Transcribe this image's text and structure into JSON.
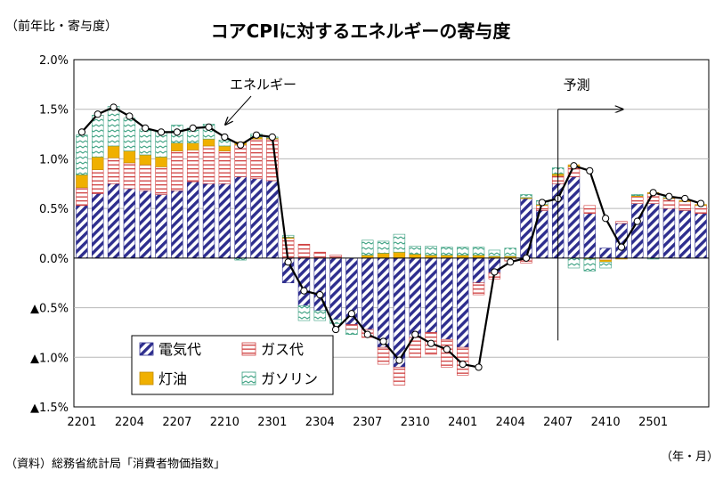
{
  "chart_data": {
    "type": "bar",
    "title": "コアCPIに対するエネルギーの寄与度",
    "ylabel": "（前年比・寄与度）",
    "xlabel": "（年・月）",
    "source": "（資料）総務省統計局「消費者物価指数」",
    "stacked": true,
    "ylim": [
      -1.5,
      2.0
    ],
    "yticks": [
      {
        "value": 2.0,
        "label": "2.0%"
      },
      {
        "value": 1.5,
        "label": "1.5%"
      },
      {
        "value": 1.0,
        "label": "1.0%"
      },
      {
        "value": 0.5,
        "label": "0.5%"
      },
      {
        "value": 0.0,
        "label": "0.0%"
      },
      {
        "value": -0.5,
        "label": "▲0.5%"
      },
      {
        "value": -1.0,
        "label": "▲1.0%"
      },
      {
        "value": -1.5,
        "label": "▲1.5%"
      }
    ],
    "x_tick_labels": [
      "2201",
      "2204",
      "2207",
      "2210",
      "2301",
      "2304",
      "2307",
      "2310",
      "2401",
      "2404",
      "2407",
      "2410",
      "2501"
    ],
    "categories": [
      "2201",
      "2202",
      "2203",
      "2204",
      "2205",
      "2206",
      "2207",
      "2208",
      "2209",
      "2210",
      "2211",
      "2212",
      "2301",
      "2302",
      "2303",
      "2304",
      "2305",
      "2306",
      "2307",
      "2308",
      "2309",
      "2310",
      "2311",
      "2312",
      "2401",
      "2402",
      "2403",
      "2404",
      "2405",
      "2406",
      "2407",
      "2408",
      "2409",
      "2410",
      "2411",
      "2412",
      "2501",
      "2502",
      "2503",
      "2504"
    ],
    "forecast_start": "2407",
    "forecast_label": "予測",
    "line_label": "エネルギー",
    "series": [
      {
        "name": "電気代",
        "key": "elec",
        "color": "#2e2e8e",
        "values": [
          0.53,
          0.65,
          0.75,
          0.7,
          0.68,
          0.64,
          0.68,
          0.77,
          0.75,
          0.75,
          0.82,
          0.8,
          0.78,
          -0.25,
          -0.48,
          -0.53,
          -0.62,
          -0.67,
          -0.72,
          -0.9,
          -1.1,
          -0.8,
          -0.75,
          -0.82,
          -0.9,
          -0.25,
          -0.15,
          0.0,
          0.6,
          0.48,
          0.75,
          0.82,
          0.45,
          0.1,
          0.35,
          0.55,
          0.55,
          0.5,
          0.48,
          0.45
        ]
      },
      {
        "name": "ガス代",
        "key": "gas",
        "color": "#d04040",
        "values": [
          0.18,
          0.24,
          0.26,
          0.26,
          0.26,
          0.28,
          0.4,
          0.32,
          0.38,
          0.33,
          0.32,
          0.4,
          0.42,
          0.2,
          0.14,
          0.06,
          0.03,
          -0.05,
          -0.08,
          -0.17,
          -0.18,
          -0.2,
          -0.22,
          -0.28,
          -0.28,
          -0.12,
          -0.06,
          -0.03,
          -0.05,
          0.05,
          0.08,
          0.1,
          0.08,
          -0.02,
          0.02,
          0.07,
          0.1,
          0.1,
          0.09,
          0.08
        ]
      },
      {
        "name": "灯油",
        "key": "kero",
        "color": "#f0b000",
        "values": [
          0.13,
          0.13,
          0.12,
          0.12,
          0.1,
          0.1,
          0.08,
          0.07,
          0.07,
          0.05,
          0.03,
          0.02,
          0.01,
          0.01,
          0.0,
          0.0,
          0.0,
          0.0,
          0.03,
          0.05,
          0.06,
          0.04,
          0.03,
          0.03,
          0.03,
          0.03,
          0.02,
          0.02,
          0.01,
          0.01,
          0.02,
          0.02,
          -0.01,
          -0.02,
          -0.01,
          0.01,
          0.01,
          0.01,
          0.01,
          0.01
        ]
      },
      {
        "name": "ガソリン",
        "key": "gaso",
        "color": "#3aa080",
        "values": [
          0.4,
          0.42,
          0.4,
          0.33,
          0.26,
          0.25,
          0.18,
          0.15,
          0.15,
          0.06,
          -0.02,
          0.03,
          0.01,
          0.02,
          -0.15,
          -0.1,
          -0.04,
          -0.05,
          0.15,
          0.12,
          0.18,
          0.08,
          0.09,
          0.08,
          0.08,
          0.08,
          0.06,
          0.08,
          0.03,
          0.04,
          0.06,
          -0.1,
          -0.12,
          -0.06,
          0.0,
          0.01,
          -0.01,
          0.01,
          0.0,
          0.0
        ]
      }
    ],
    "line": {
      "name": "エネルギー",
      "values": [
        1.27,
        1.45,
        1.52,
        1.43,
        1.31,
        1.27,
        1.27,
        1.31,
        1.32,
        1.22,
        1.14,
        1.24,
        1.22,
        -0.04,
        -0.33,
        -0.37,
        -0.72,
        -0.56,
        -0.77,
        -0.84,
        -1.03,
        -0.77,
        -0.86,
        -0.92,
        -1.07,
        -1.1,
        -0.14,
        -0.04,
        0.0,
        0.56,
        0.6,
        0.93,
        0.88,
        0.4,
        0.11,
        0.37,
        0.66,
        0.62,
        0.6,
        0.55
      ]
    }
  }
}
